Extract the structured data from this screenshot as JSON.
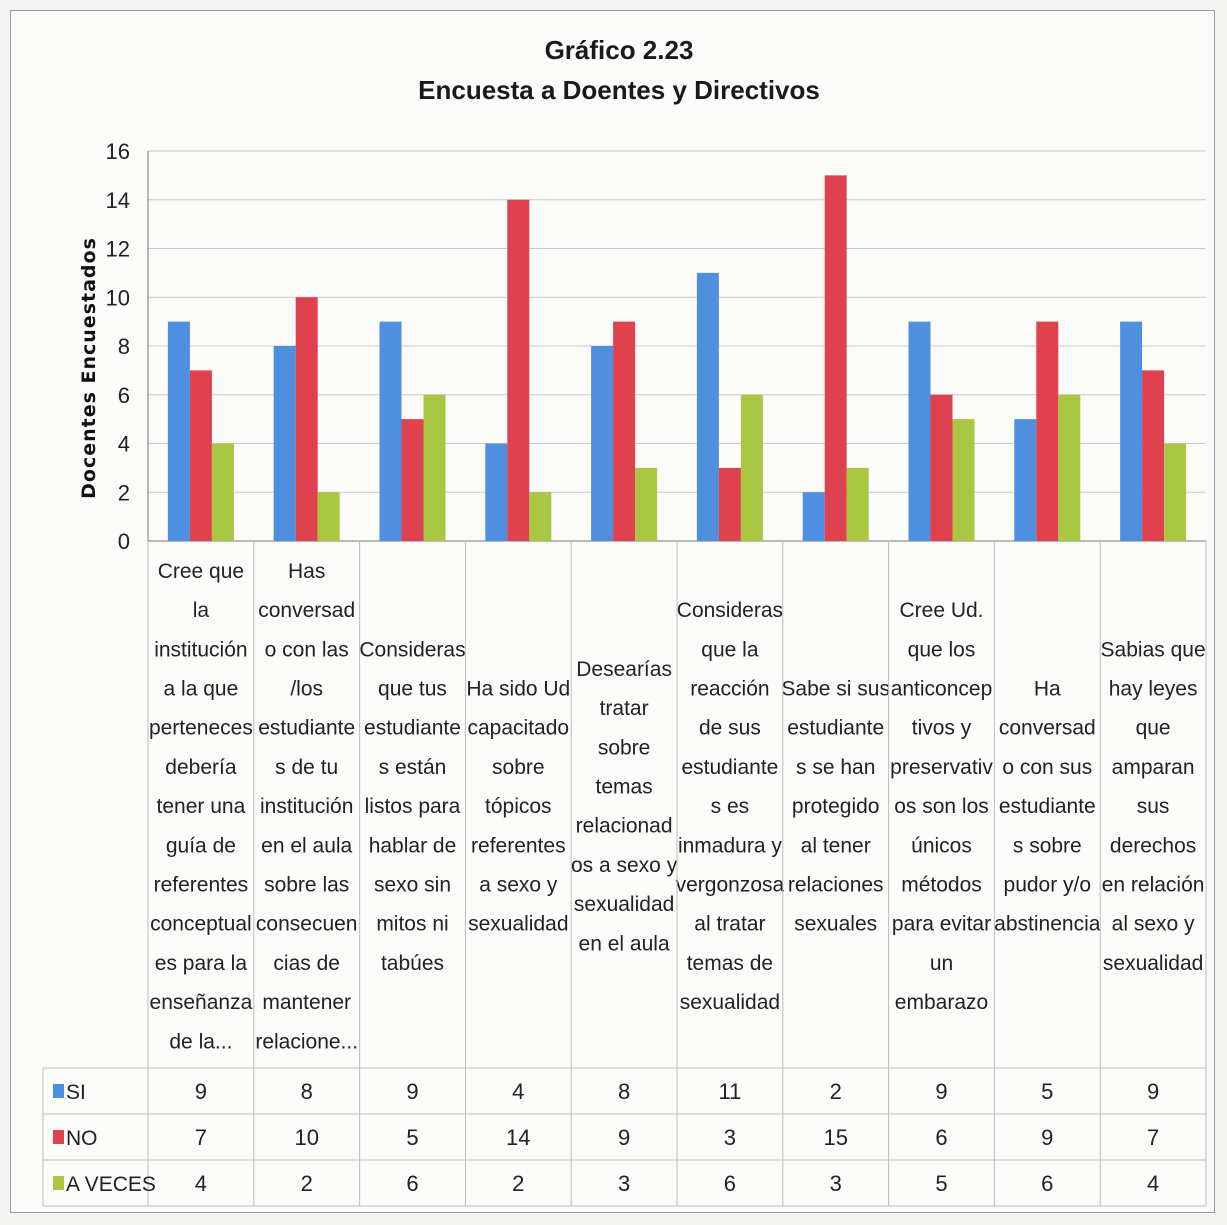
{
  "chart_data": {
    "type": "bar",
    "title": "Gráfico 2.23",
    "subtitle": "Encuesta a Doentes y Directivos",
    "ylabel": "Docentes Encuestados",
    "xlabel": "",
    "ylim": [
      0,
      16
    ],
    "yticks": [
      0,
      2,
      4,
      6,
      8,
      10,
      12,
      14,
      16
    ],
    "grid": true,
    "legend": "data-table",
    "categories": [
      "Cree que la institución a la que perteneces debería tener una guía de referentes conceptuales para la enseñanza de la...",
      "Has conversado con las /los estudiantes de tu institución en el aula sobre las consecuencias de mantener relacione...",
      "Consideras que tus estudiantes están listos para hablar de sexo sin mitos ni tabúes",
      "Ha sido Ud capacitado sobre tópicos referentes a sexo y sexualidad",
      "Desearías tratar sobre temas relacionados a sexo y sexualidad en el aula",
      "Consideras que la reacción de sus estudiantes es inmadura y vergonzosa al tratar temas de sexualidad",
      "Sabe si sus estudiantes se han protegido al tener relaciones sexuales",
      "Cree Ud. que los anticonceptivos y preservativos son los únicos métodos para evitar un embarazo",
      "Ha conversado con sus estudiantes sobre pudor y/o abstinencia",
      "Sabias que hay leyes que amparan sus derechos en relación al sexo y sexualidad"
    ],
    "category_lines": [
      [
        "Cree  que",
        "la",
        "institución",
        "a la que",
        "perteneces",
        "debería",
        "tener una",
        "guía de",
        "referentes",
        "conceptual",
        "es para la",
        "enseñanza",
        "de la..."
      ],
      [
        "Has",
        "conversad",
        "o con las",
        "/los",
        "estudiante",
        "s de tu",
        "institución",
        "en el aula",
        "sobre las",
        "consecuen",
        "cias  de",
        "mantener",
        "relacione..."
      ],
      [
        "Consideras",
        "que  tus",
        "estudiante",
        "s están",
        "listos para",
        "hablar de",
        "sexo sin",
        "mitos ni",
        "tabúes"
      ],
      [
        "Ha sido Ud",
        "capacitado",
        "sobre",
        "tópicos",
        "referentes",
        "a sexo y",
        "sexualidad"
      ],
      [
        "Desearías",
        "tratar",
        "sobre",
        "temas",
        "relacionad",
        "os a sexo y",
        "sexualidad",
        "en el aula"
      ],
      [
        "Consideras",
        "que la",
        "reacción",
        "de sus",
        "estudiante",
        "s   es",
        "inmadura y",
        "vergonzosa",
        "al tratar",
        "temas de",
        "sexualidad"
      ],
      [
        "Sabe si sus",
        "estudiante",
        "s  se han",
        "protegido",
        "al tener",
        "relaciones",
        "sexuales"
      ],
      [
        "Cree Ud.",
        "que los",
        "anticoncep",
        "tivos y",
        "preservativ",
        "os son los",
        "únicos",
        "métodos",
        "para evitar",
        "un",
        "embarazo"
      ],
      [
        "Ha",
        "conversad",
        "o con sus",
        "estudiante",
        "s sobre",
        "pudor y/o",
        "abstinencia"
      ],
      [
        "Sabias que",
        "hay leyes",
        "que",
        "amparan",
        "sus",
        "derechos",
        "en relación",
        "al sexo y",
        "sexualidad"
      ]
    ],
    "series": [
      {
        "name": "SI",
        "color": "#4f8fe0",
        "values": [
          9,
          8,
          9,
          4,
          8,
          11,
          2,
          9,
          5,
          9
        ]
      },
      {
        "name": "NO",
        "color": "#e0414f",
        "values": [
          7,
          10,
          5,
          14,
          9,
          3,
          15,
          6,
          9,
          7
        ]
      },
      {
        "name": "A  VECES",
        "color": "#a9c742",
        "values": [
          4,
          2,
          6,
          2,
          3,
          6,
          3,
          5,
          6,
          4
        ]
      }
    ]
  }
}
